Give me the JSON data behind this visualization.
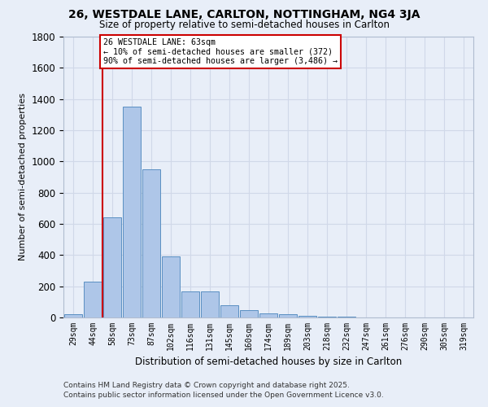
{
  "title": "26, WESTDALE LANE, CARLTON, NOTTINGHAM, NG4 3JA",
  "subtitle": "Size of property relative to semi-detached houses in Carlton",
  "xlabel": "Distribution of semi-detached houses by size in Carlton",
  "ylabel": "Number of semi-detached properties",
  "footnote1": "Contains HM Land Registry data © Crown copyright and database right 2025.",
  "footnote2": "Contains public sector information licensed under the Open Government Licence v3.0.",
  "categories": [
    "29sqm",
    "44sqm",
    "58sqm",
    "73sqm",
    "87sqm",
    "102sqm",
    "116sqm",
    "131sqm",
    "145sqm",
    "160sqm",
    "174sqm",
    "189sqm",
    "203sqm",
    "218sqm",
    "232sqm",
    "247sqm",
    "261sqm",
    "276sqm",
    "290sqm",
    "305sqm",
    "319sqm"
  ],
  "values": [
    20,
    230,
    640,
    1350,
    950,
    390,
    165,
    165,
    80,
    45,
    28,
    20,
    8,
    5,
    3,
    2,
    2,
    2,
    1,
    1,
    1
  ],
  "bar_color": "#aec6e8",
  "bar_edge_color": "#5a8fc2",
  "grid_color": "#d0d8e8",
  "background_color": "#e8eef8",
  "property_line_x": 1.5,
  "annotation_title": "26 WESTDALE LANE: 63sqm",
  "annotation_line1": "← 10% of semi-detached houses are smaller (372)",
  "annotation_line2": "90% of semi-detached houses are larger (3,486) →",
  "annotation_box_color": "#ffffff",
  "annotation_box_edge": "#cc0000",
  "red_line_color": "#cc0000",
  "ylim": [
    0,
    1800
  ],
  "yticks": [
    0,
    200,
    400,
    600,
    800,
    1000,
    1200,
    1400,
    1600,
    1800
  ]
}
